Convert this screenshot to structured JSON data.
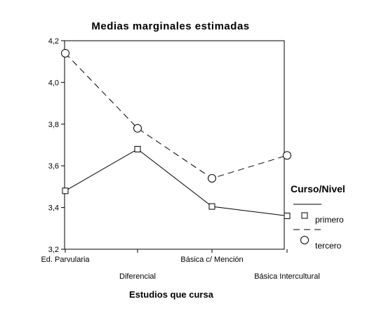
{
  "chart_data": {
    "type": "line",
    "title": "Medias marginales estimadas",
    "xlabel": "Estudios que cursa",
    "ylabel": "",
    "categories": [
      "Ed. Parvularia",
      "Diferencial",
      "Básica c/ Mención",
      "Básica Intercultural"
    ],
    "ylim": [
      3.2,
      4.2
    ],
    "yticks": [
      "4,2",
      "4,0",
      "3,8",
      "3,6",
      "3,4",
      "3,2"
    ],
    "ytick_values": [
      4.2,
      4.0,
      3.8,
      3.6,
      3.4,
      3.2
    ],
    "grid": false,
    "legend_title": "Curso/Nivel",
    "legend_position": "right",
    "series": [
      {
        "name": "primero",
        "values": [
          3.48,
          3.68,
          3.405,
          3.36
        ],
        "marker": "square",
        "dash": "solid",
        "color": "#000000"
      },
      {
        "name": "tercero",
        "values": [
          4.14,
          3.78,
          3.54,
          3.65
        ],
        "marker": "circle",
        "dash": "dashed",
        "color": "#000000"
      }
    ]
  }
}
